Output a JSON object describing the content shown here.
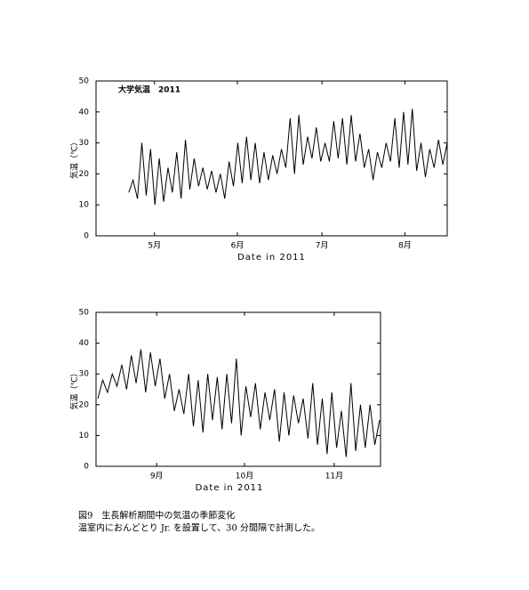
{
  "chart_data": [
    {
      "type": "line",
      "annotation": "大学気温　2011",
      "x_label": "Date in 2011",
      "y_label": "気温（℃）",
      "color": "#000000",
      "values": [
        14,
        18,
        12,
        30,
        13,
        28,
        10,
        25,
        11,
        22,
        14,
        27,
        12,
        31,
        15,
        25,
        16,
        22,
        15,
        21,
        14,
        20,
        12,
        24,
        16,
        30,
        17,
        32,
        18,
        30,
        17,
        27,
        18,
        26,
        20,
        28,
        22,
        38,
        20,
        39,
        23,
        32,
        25,
        35,
        24,
        30,
        24,
        37,
        25,
        38,
        23,
        39,
        24,
        33,
        22,
        28,
        18,
        27,
        22,
        30,
        24,
        38,
        22,
        40,
        23,
        41,
        21,
        30,
        19,
        28,
        22,
        31,
        23,
        30
      ],
      "xlim": [
        -7.5,
        73
      ],
      "xticks": [
        {
          "value": 5.9,
          "label": "5月"
        },
        {
          "value": 24.9,
          "label": "6月"
        },
        {
          "value": 44.3,
          "label": "7月"
        },
        {
          "value": 63.3,
          "label": "8月"
        }
      ],
      "ylim": [
        0,
        50
      ],
      "yticks": [
        0,
        10,
        20,
        30,
        40,
        50
      ]
    },
    {
      "type": "line",
      "x_label": "Date in 2011",
      "y_label": "気温（℃）",
      "color": "#000000",
      "values": [
        22,
        28,
        24,
        30,
        26,
        33,
        25,
        36,
        27,
        38,
        24,
        37,
        26,
        35,
        22,
        30,
        18,
        25,
        17,
        30,
        13,
        28,
        11,
        30,
        15,
        29,
        12,
        30,
        14,
        35,
        10,
        26,
        16,
        27,
        12,
        24,
        15,
        25,
        8,
        24,
        10,
        23,
        14,
        22,
        9,
        27,
        7,
        22,
        4,
        24,
        6,
        18,
        3,
        27,
        5,
        20,
        6,
        20,
        7,
        15
      ],
      "xlim": [
        -0.4,
        59.2
      ],
      "xticks": [
        {
          "value": 12.3,
          "label": "9月"
        },
        {
          "value": 30.7,
          "label": "10月"
        },
        {
          "value": 49.5,
          "label": "11月"
        }
      ],
      "ylim": [
        0,
        50
      ],
      "yticks": [
        0,
        10,
        20,
        30,
        40,
        50
      ]
    }
  ],
  "caption": [
    "図9　生長解析期間中の気温の季節変化",
    "温室内におんどとり Jr. を設置して、30 分間隔で計測した。"
  ]
}
